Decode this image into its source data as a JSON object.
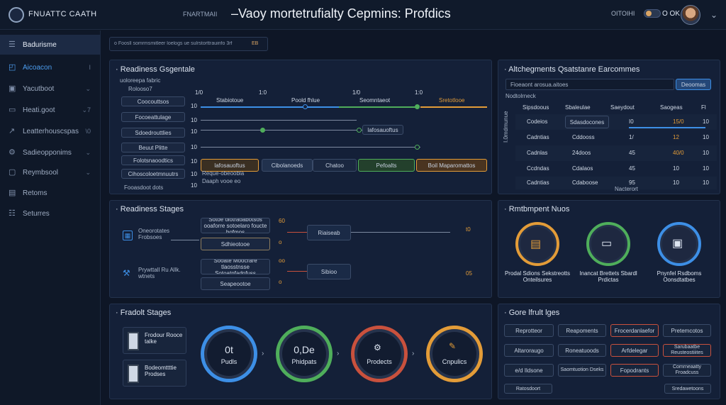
{
  "app": {
    "brand": "FNUATTC CAATH",
    "crumb": "FNARTMAII",
    "title": "–Vaoy mortetrufialty Cepmins: Profdics",
    "user_status": "OITOIHI",
    "user_code": "O OK"
  },
  "colors": {
    "accent_blue": "#3d8fe6",
    "accent_green": "#4fae5b",
    "accent_orange": "#e39c38",
    "alert_red": "#c9513d"
  },
  "sidebar": {
    "items": [
      {
        "label": "Badurisme",
        "icon": "menu-icon",
        "chev": ""
      },
      {
        "label": "Aicoacon",
        "icon": "dashboard-icon",
        "chev": "I"
      },
      {
        "label": "Yacutboot",
        "icon": "book-icon",
        "chev": "⌄"
      },
      {
        "label": "Heati.goot",
        "icon": "chat-icon",
        "chev": "⌄7"
      },
      {
        "label": "Leatterhouscspas",
        "icon": "chart-icon",
        "chev": "\\0"
      },
      {
        "label": "Sadieopponims",
        "icon": "settings-icon",
        "chev": "⌄"
      },
      {
        "label": "Reymbsool",
        "icon": "monitor-icon",
        "chev": "⌄"
      },
      {
        "label": "Retoms",
        "icon": "list-icon",
        "chev": ""
      },
      {
        "label": "Seturres",
        "icon": "sliders-icon",
        "chev": ""
      }
    ]
  },
  "search": {
    "placeholder": "o Foosll somrmsmitleer loelogs ue sulrstorttrauinfo 3rf",
    "tag": "EB"
  },
  "readiness_schedule": {
    "title": "Readiness Gsgentale",
    "subtitle": "uoloreepa fabric",
    "subtitle2": "Rolooso7",
    "ticks": [
      "1/0",
      "1:0",
      "1/0",
      "1:0"
    ],
    "column_heads": [
      "Stabiotoue",
      "Poold fhlue",
      "Seomntaeot",
      "Sretotlooe"
    ],
    "row_labels": [
      "Coocouttsos",
      "Focoeattulage",
      "Sdoedrouttlies",
      "Beuut Plitte",
      "Folotsnaoodtics",
      "Cihoscoloetmnuutrs",
      "Fooasdoot dots"
    ],
    "row_marks": [
      "10",
      "10",
      "10",
      "10",
      "10",
      "10",
      "10"
    ],
    "tags": [
      "lafosauoftus",
      "Cibolanoeds",
      "Chatoo",
      "Pefoalts",
      "Boil Maparomattos"
    ],
    "footnote1": "Reque-obeoobla",
    "footnote2": "Daaph vooe eo"
  },
  "alignment_panel": {
    "title": "Altchegments Qsatstanre Earcommes",
    "filter_value": "Fioeaont arosua.aitoes",
    "filter_button": "Deoomas",
    "sub_label": "Nodtolrneck",
    "y_label": "I.0mdmunue",
    "x_label": "Nacterort",
    "headers": [
      "Sipsdoous",
      "Sbaleulae",
      "Saeydout",
      "Saogeas",
      "Fl"
    ],
    "rows": [
      {
        "name": "Codeios",
        "detail": "Sdasdocones",
        "v1": "I0",
        "v2": "15/0",
        "v3": "10"
      },
      {
        "name": "Cadntias",
        "detail": "Cddooss",
        "v1": "1/",
        "v2": "12",
        "v3": "10"
      },
      {
        "name": "Cadnlas",
        "detail": "24doos",
        "v1": "45",
        "v2": "40/0",
        "v3": "10"
      },
      {
        "name": "Ccdndas",
        "detail": "Cdalaos",
        "v1": "45",
        "v2": "10",
        "v3": "10"
      },
      {
        "name": "Cadntias",
        "detail": "Cdaboose",
        "v1": "95",
        "v2": "10",
        "v3": "10"
      }
    ]
  },
  "readiness_stages": {
    "title": "Readiness Stages",
    "left_top_label": "Oneorotates Frobsoes",
    "left_bottom_label": "Prywttall Ru Allk. wtnets",
    "box1": "Sotoe olotraoabotsos ooaforre sotoelaro foucte bofmos",
    "box2": "Sdhieotooe",
    "box3": "Sooate Moocrare tlaosstnsse Sotoatnfadnfuss",
    "box4": "Seapeootoe",
    "node1": "Riaiseab",
    "node2": "Sibioo",
    "mark1": "60",
    "mark2": "o",
    "mark3": "oo",
    "mark4": "o",
    "side_mark1": "t0",
    "side_mark2": "05"
  },
  "retirement_nuos": {
    "title": "Rmtbmpent Nuos",
    "items": [
      {
        "label": "Prodal Sdions Sekstreotts Onteilsures",
        "color": "#e39c38",
        "icon": "package-icon"
      },
      {
        "label": "Inancat Brettets Sbardl Prdictas",
        "color": "#4fae5b",
        "icon": "laptop-icon"
      },
      {
        "label": "Pnynfel Rsdboms Oonsdtatbes",
        "color": "#3d8fe6",
        "icon": "server-icon"
      }
    ]
  },
  "product_stages": {
    "title": "Fradolt Stages",
    "card1": "Frodour Rooce talke",
    "card2": "Bodeomttttie Prodses",
    "rings": [
      {
        "big": "0t",
        "small": "Pudls",
        "color": "#3d8fe6"
      },
      {
        "big": "0,De",
        "small": "Phidpats",
        "color": "#4fae5b"
      },
      {
        "big": "",
        "small": "Prodects",
        "color": "#c9513d"
      },
      {
        "big": "",
        "small": "Cnpulics",
        "color": "#e39c38"
      }
    ]
  },
  "gore_nult": {
    "title": "Gore lfrult lges",
    "buttons": [
      {
        "label": "Reprotteor",
        "alert": false
      },
      {
        "label": "Reapoments",
        "alert": false
      },
      {
        "label": "Frocerdanlaefor",
        "alert": true
      },
      {
        "label": "Pretemcotos",
        "alert": false
      },
      {
        "label": "Altaroraugo",
        "alert": false
      },
      {
        "label": "Roneatuoods",
        "alert": false
      },
      {
        "label": "Arfdelegar",
        "alert": true
      },
      {
        "label": "Sarubaatbe Reusteostiiites",
        "alert": true
      },
      {
        "label": "e/d Ildsone",
        "alert": false
      },
      {
        "label": "Saomtuotion Dseks",
        "alert": false
      },
      {
        "label": "Fopodrants",
        "alert": true
      },
      {
        "label": "Comrneaatty Froadcuss",
        "alert": false
      }
    ],
    "footer_left": "Ratosdoort",
    "footer_right": "Sredawetoons"
  }
}
